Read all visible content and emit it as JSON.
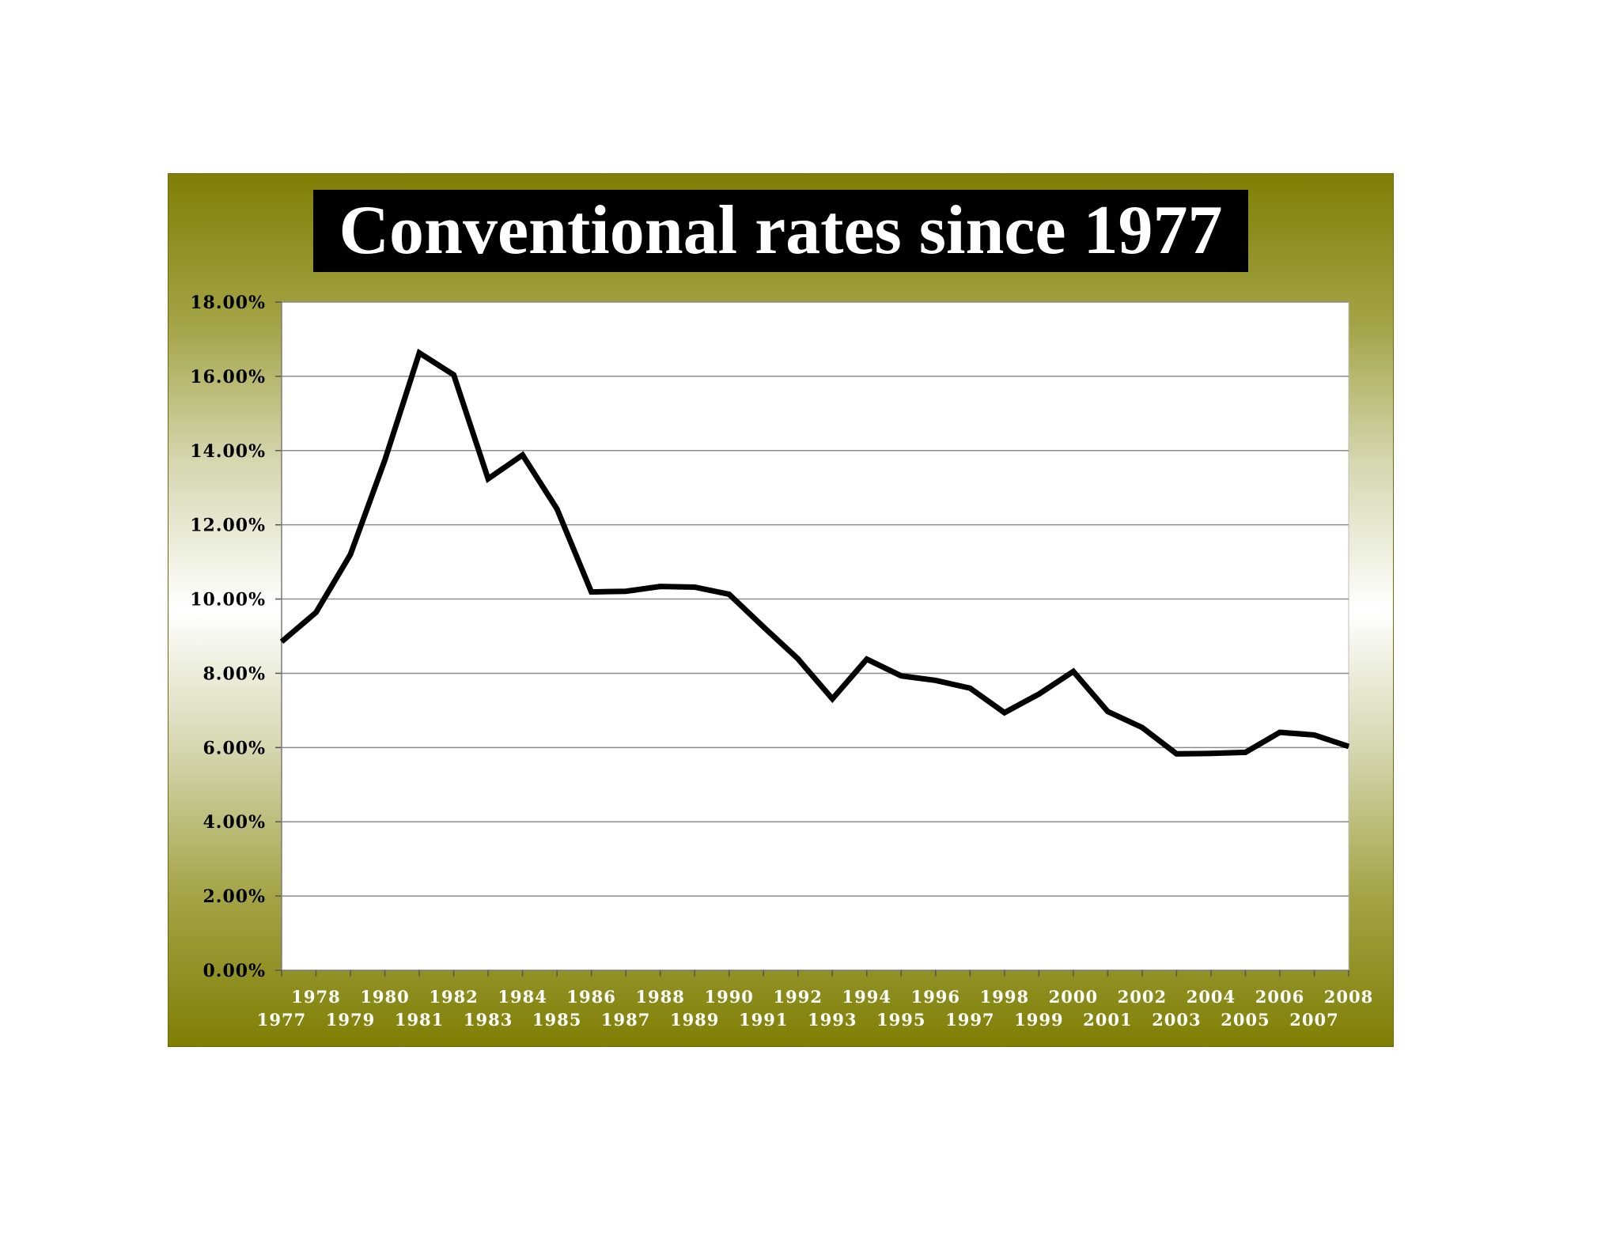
{
  "chart_data": {
    "type": "line",
    "title": "Conventional rates since 1977",
    "xlabel": "",
    "ylabel": "",
    "x": [
      1977,
      1978,
      1979,
      1980,
      1981,
      1982,
      1983,
      1984,
      1985,
      1986,
      1987,
      1988,
      1989,
      1990,
      1991,
      1992,
      1993,
      1994,
      1995,
      1996,
      1997,
      1998,
      1999,
      2000,
      2001,
      2002,
      2003,
      2004,
      2005,
      2006,
      2007,
      2008
    ],
    "series": [
      {
        "values": [
          8.85,
          9.64,
          11.2,
          13.74,
          16.63,
          16.04,
          13.24,
          13.88,
          12.43,
          10.19,
          10.21,
          10.34,
          10.32,
          10.13,
          9.25,
          8.39,
          7.31,
          8.38,
          7.93,
          7.81,
          7.6,
          6.94,
          7.44,
          8.05,
          6.97,
          6.54,
          5.83,
          5.84,
          5.87,
          6.41,
          6.34,
          6.03
        ]
      }
    ],
    "ylim": [
      0,
      18
    ],
    "yticks": [
      "0.00%",
      "2.00%",
      "4.00%",
      "6.00%",
      "8.00%",
      "10.00%",
      "12.00%",
      "14.00%",
      "16.00%",
      "18.00%"
    ],
    "xtick_labels": [
      "1977",
      "1978",
      "1979",
      "1980",
      "1981",
      "1982",
      "1983",
      "1984",
      "1985",
      "1986",
      "1987",
      "1988",
      "1989",
      "1990",
      "1991",
      "1992",
      "1993",
      "1994",
      "1995",
      "1996",
      "1997",
      "1998",
      "1999",
      "2000",
      "2001",
      "2002",
      "2003",
      "2004",
      "2005",
      "2006",
      "2007",
      "2008"
    ],
    "grid": true,
    "legend": "none",
    "colors": {
      "line": "#000000",
      "frame_dark": "#7f7f05",
      "plot_background": "#ffffff",
      "gridline": "#8c8c8c",
      "title_background": "#000000",
      "title_text": "#ffffff",
      "xtick_text": "#ffffff",
      "ytick_text": "#000000"
    }
  }
}
